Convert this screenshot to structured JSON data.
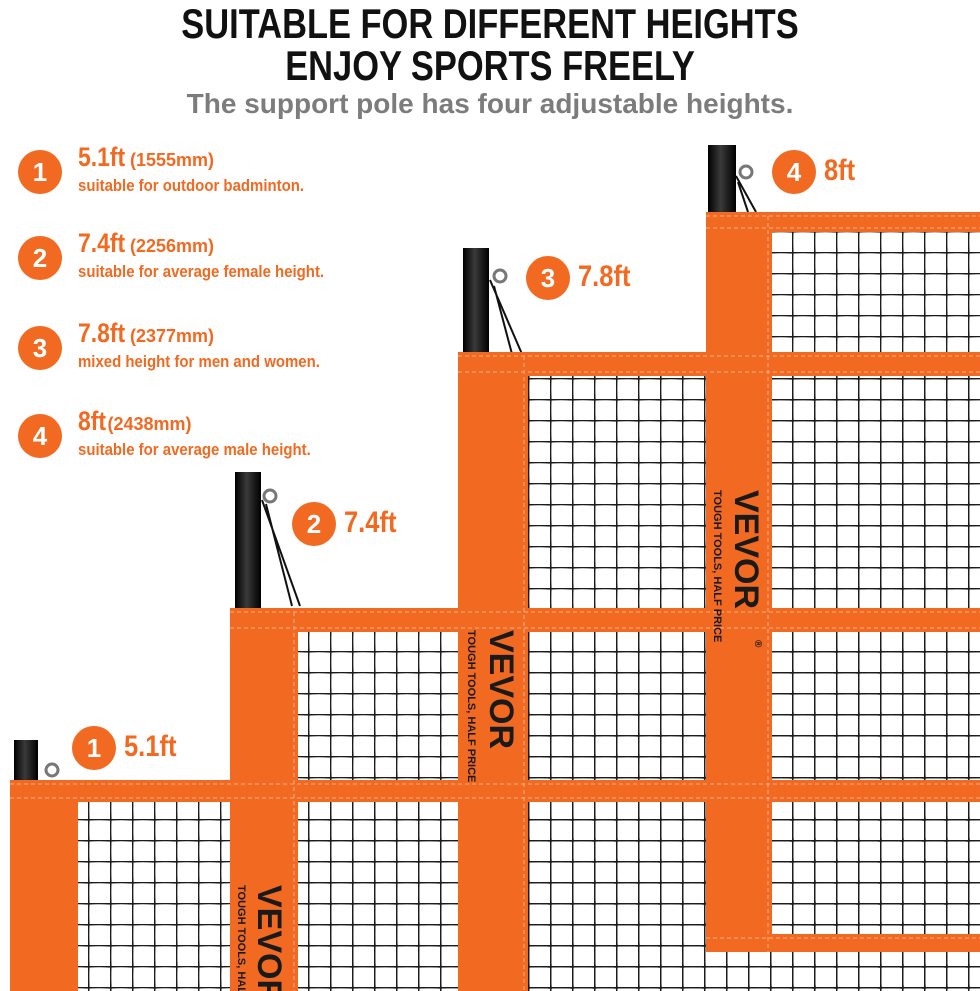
{
  "header": {
    "line1": "SUITABLE FOR DIFFERENT HEIGHTS",
    "line2": "ENJOY SPORTS FREELY",
    "subtitle": "The support pole has four adjustable heights."
  },
  "specs": [
    {
      "num": "1",
      "height_ft": "5.1ft",
      "height_mm": "(1555mm)",
      "desc": "suitable for outdoor badminton."
    },
    {
      "num": "2",
      "height_ft": "7.4ft",
      "height_mm": "(2256mm)",
      "desc": "suitable for average female height."
    },
    {
      "num": "3",
      "height_ft": "7.8ft",
      "height_mm": "(2377mm)",
      "desc": "mixed height for men and women."
    },
    {
      "num": "4",
      "height_ft": "8ft",
      "height_mm": "(2438mm)",
      "desc": "suitable for average male height."
    }
  ],
  "tags": [
    {
      "num": "1",
      "label": "5.1ft"
    },
    {
      "num": "2",
      "label": "7.4ft"
    },
    {
      "num": "3",
      "label": "7.8ft"
    },
    {
      "num": "4",
      "label": "8ft"
    }
  ],
  "brand": {
    "name": "VEVOR",
    "slogan": "TOUGH TOOLS, HALF PRICE",
    "registered": "®"
  },
  "colors": {
    "accent": "#f26a21",
    "headline": "#111111",
    "subtitle": "#7c7c7c",
    "pole": "#1a1a1a",
    "mesh": "#1c1c1c"
  }
}
